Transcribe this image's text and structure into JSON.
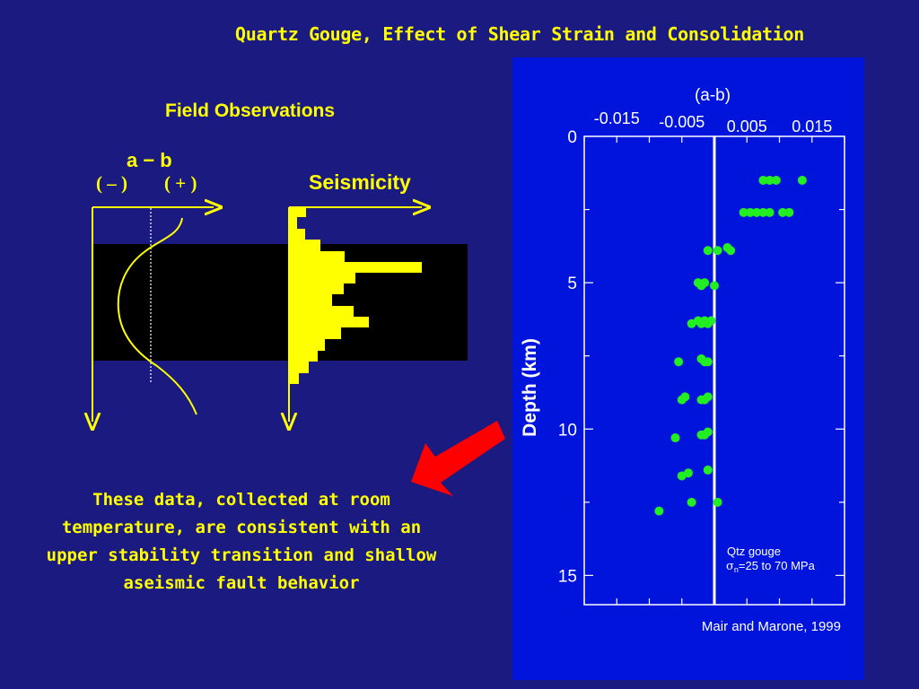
{
  "slide": {
    "title": "Quartz Gouge, Effect of Shear Strain and Consolidation",
    "field_title": "Field Observations",
    "ab_label": "a − b",
    "sign_negative": "( – )",
    "sign_positive": "( + )",
    "seismicity_label": "Seismicity",
    "caption_lines": [
      "These data, collected at room",
      "temperature, are consistent with an",
      "upper stability transition and shallow",
      "aseismic fault behavior"
    ],
    "colors": {
      "background": "#1a1a80",
      "panel": "#0014dc",
      "text": "#ffff00",
      "data": "#22ee22",
      "arrow": "#ff0000"
    }
  },
  "chart_data": {
    "type": "scatter",
    "title": "(a-b)",
    "xlabel": "(a-b)",
    "ylabel": "Depth (km)",
    "xlim": [
      -0.02,
      0.02
    ],
    "ylim": [
      0,
      16
    ],
    "y_inverted": true,
    "x_ticks": [
      -0.015,
      -0.005,
      0.005,
      0.015
    ],
    "x_tick_labels": [
      "-0.015",
      "-0.005",
      "0.005",
      "0.015"
    ],
    "y_ticks": [
      0,
      5,
      10,
      15
    ],
    "y_tick_labels": [
      "0",
      "5",
      "10",
      "15"
    ],
    "reference_line_x": 0,
    "annotation_line1": "Qtz gouge",
    "annotation_sigma": "σ",
    "annotation_sub": "n",
    "annotation_rest": "=25 to 70 MPa",
    "source": "Mair and Marone, 1999",
    "points": {
      "x": [
        0.0135,
        0.0075,
        0.0095,
        0.0085,
        0.0115,
        0.0105,
        0.0045,
        0.0085,
        0.0065,
        0.0055,
        0.0075,
        0.0005,
        0.0025,
        0.002,
        -0.001,
        -0.0015,
        -0.002,
        -0.0025,
        0.0,
        -0.0025,
        -0.0035,
        -0.001,
        -0.0015,
        -0.0005,
        -0.002,
        -0.0055,
        -0.002,
        -0.0015,
        -0.001,
        -0.005,
        -0.0045,
        -0.001,
        -0.0015,
        -0.002,
        -0.006,
        -0.002,
        -0.001,
        -0.0015,
        -0.005,
        -0.004,
        -0.001,
        -0.0085,
        -0.0035,
        0.0005
      ],
      "y": [
        1.5,
        1.5,
        1.5,
        1.5,
        2.6,
        2.6,
        2.6,
        2.6,
        2.6,
        2.6,
        2.6,
        3.9,
        3.9,
        3.8,
        3.9,
        5.0,
        5.1,
        5.0,
        5.1,
        6.3,
        6.4,
        6.4,
        6.3,
        6.3,
        6.4,
        7.7,
        7.6,
        7.7,
        7.7,
        9.0,
        8.9,
        8.9,
        9.0,
        9.0,
        10.3,
        10.2,
        10.1,
        10.2,
        11.6,
        11.5,
        11.4,
        12.8,
        12.5,
        12.5
      ]
    }
  }
}
